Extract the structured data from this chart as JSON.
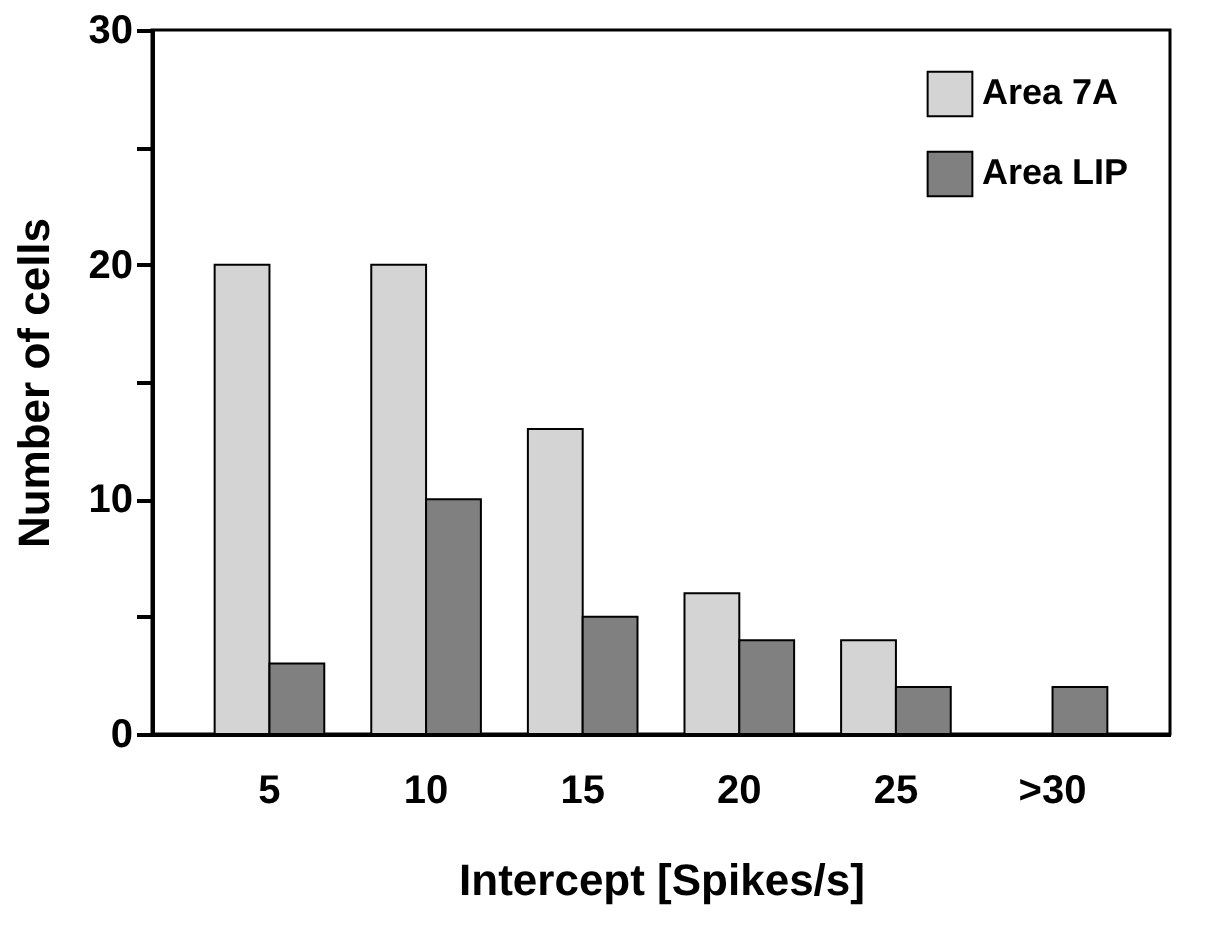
{
  "chart_data": {
    "type": "bar",
    "xlabel": "Intercept [Spikes/s]",
    "ylabel": "Number of cells",
    "categories": [
      "5",
      "10",
      "15",
      "20",
      "25",
      ">30"
    ],
    "series": [
      {
        "name": "Area 7A",
        "color": "#d4d4d4",
        "values": [
          20,
          20,
          13,
          6,
          4,
          0
        ]
      },
      {
        "name": "Area LIP",
        "color": "#808080",
        "values": [
          3,
          10,
          5,
          4,
          2,
          2
        ]
      }
    ],
    "ylim": [
      0,
      30
    ],
    "yticks": [
      0,
      {
        "value": 5,
        "label": null
      },
      10,
      {
        "value": 15,
        "label": null
      },
      20,
      {
        "value": 25,
        "label": null
      },
      30
    ],
    "grid": false,
    "legend": "top right"
  }
}
